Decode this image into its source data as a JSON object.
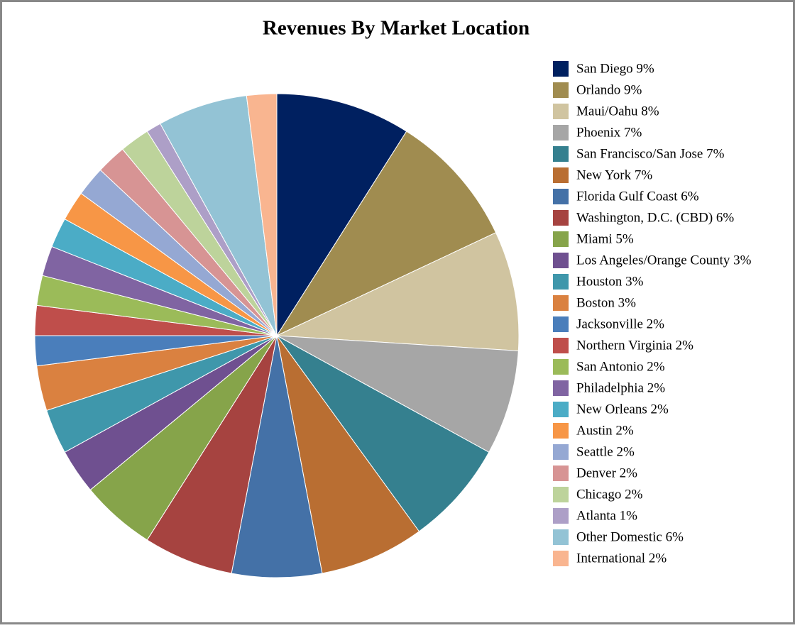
{
  "chart_data": {
    "type": "pie",
    "title": "Revenues By Market Location",
    "categories": [
      "San Diego 9%",
      "Orlando 9%",
      "Maui/Oahu 8%",
      "Phoenix 7%",
      "San Francisco/San Jose 7%",
      "New York 7%",
      "Florida Gulf Coast 6%",
      "Washington, D.C. (CBD) 6%",
      "Miami 5%",
      "Los Angeles/Orange County 3%",
      "Houston 3%",
      "Boston 3%",
      "Jacksonville 2%",
      "Northern Virginia 2%",
      "San Antonio 2%",
      "Philadelphia 2%",
      "New Orleans 2%",
      "Austin 2%",
      "Seattle 2%",
      "Denver 2%",
      "Chicago 2%",
      "Atlanta 1%",
      "Other Domestic 6%",
      "International 2%"
    ],
    "values": [
      9,
      9,
      8,
      7,
      7,
      7,
      6,
      6,
      5,
      3,
      3,
      3,
      2,
      2,
      2,
      2,
      2,
      2,
      2,
      2,
      2,
      1,
      6,
      2
    ],
    "colors": [
      "#002060",
      "#a08c50",
      "#d0c4a0",
      "#a6a6a6",
      "#35808f",
      "#b96e32",
      "#4471a7",
      "#a64340",
      "#86a44a",
      "#6f5090",
      "#3f97ab",
      "#da8140",
      "#4a7ebb",
      "#bf4e4b",
      "#9bbb59",
      "#8064a2",
      "#4bacc6",
      "#f79646",
      "#95a8d3",
      "#d79494",
      "#bdd39b",
      "#ad9fc7",
      "#93c3d5",
      "#f9b590"
    ],
    "legend": "right"
  }
}
